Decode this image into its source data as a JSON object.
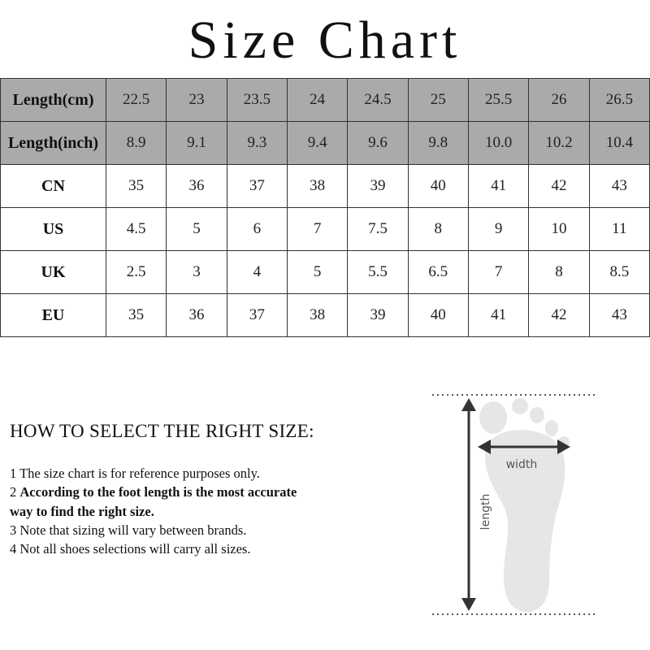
{
  "title": "Size Chart",
  "table": {
    "rows": [
      {
        "label": "Length(cm)",
        "shaded": true,
        "values": [
          "22.5",
          "23",
          "23.5",
          "24",
          "24.5",
          "25",
          "25.5",
          "26",
          "26.5"
        ]
      },
      {
        "label": "Length(inch)",
        "shaded": true,
        "values": [
          "8.9",
          "9.1",
          "9.3",
          "9.4",
          "9.6",
          "9.8",
          "10.0",
          "10.2",
          "10.4"
        ]
      },
      {
        "label": "CN",
        "shaded": false,
        "values": [
          "35",
          "36",
          "37",
          "38",
          "39",
          "40",
          "41",
          "42",
          "43"
        ]
      },
      {
        "label": "US",
        "shaded": false,
        "values": [
          "4.5",
          "5",
          "6",
          "7",
          "7.5",
          "8",
          "9",
          "10",
          "11"
        ]
      },
      {
        "label": "UK",
        "shaded": false,
        "values": [
          "2.5",
          "3",
          "4",
          "5",
          "5.5",
          "6.5",
          "7",
          "8",
          "8.5"
        ]
      },
      {
        "label": "EU",
        "shaded": false,
        "values": [
          "35",
          "36",
          "37",
          "38",
          "39",
          "40",
          "41",
          "42",
          "43"
        ]
      }
    ],
    "shade_color": "#aaaaaa"
  },
  "guide": {
    "heading": "HOW TO SELECT THE RIGHT SIZE:",
    "items": [
      {
        "num": "1",
        "text": "The size chart is for reference purposes only.",
        "bold": false
      },
      {
        "num": "2",
        "text": "According to the foot length is the most accurate way to find the right size.",
        "bold": true
      },
      {
        "num": "3",
        "text": "Note that sizing will vary between brands.",
        "bold": false
      },
      {
        "num": "4",
        "text": "Not all shoes selections will carry all sizes.",
        "bold": false
      }
    ]
  },
  "diagram": {
    "width_label": "width",
    "length_label": "length",
    "icon": "foot-measurement-icon"
  }
}
